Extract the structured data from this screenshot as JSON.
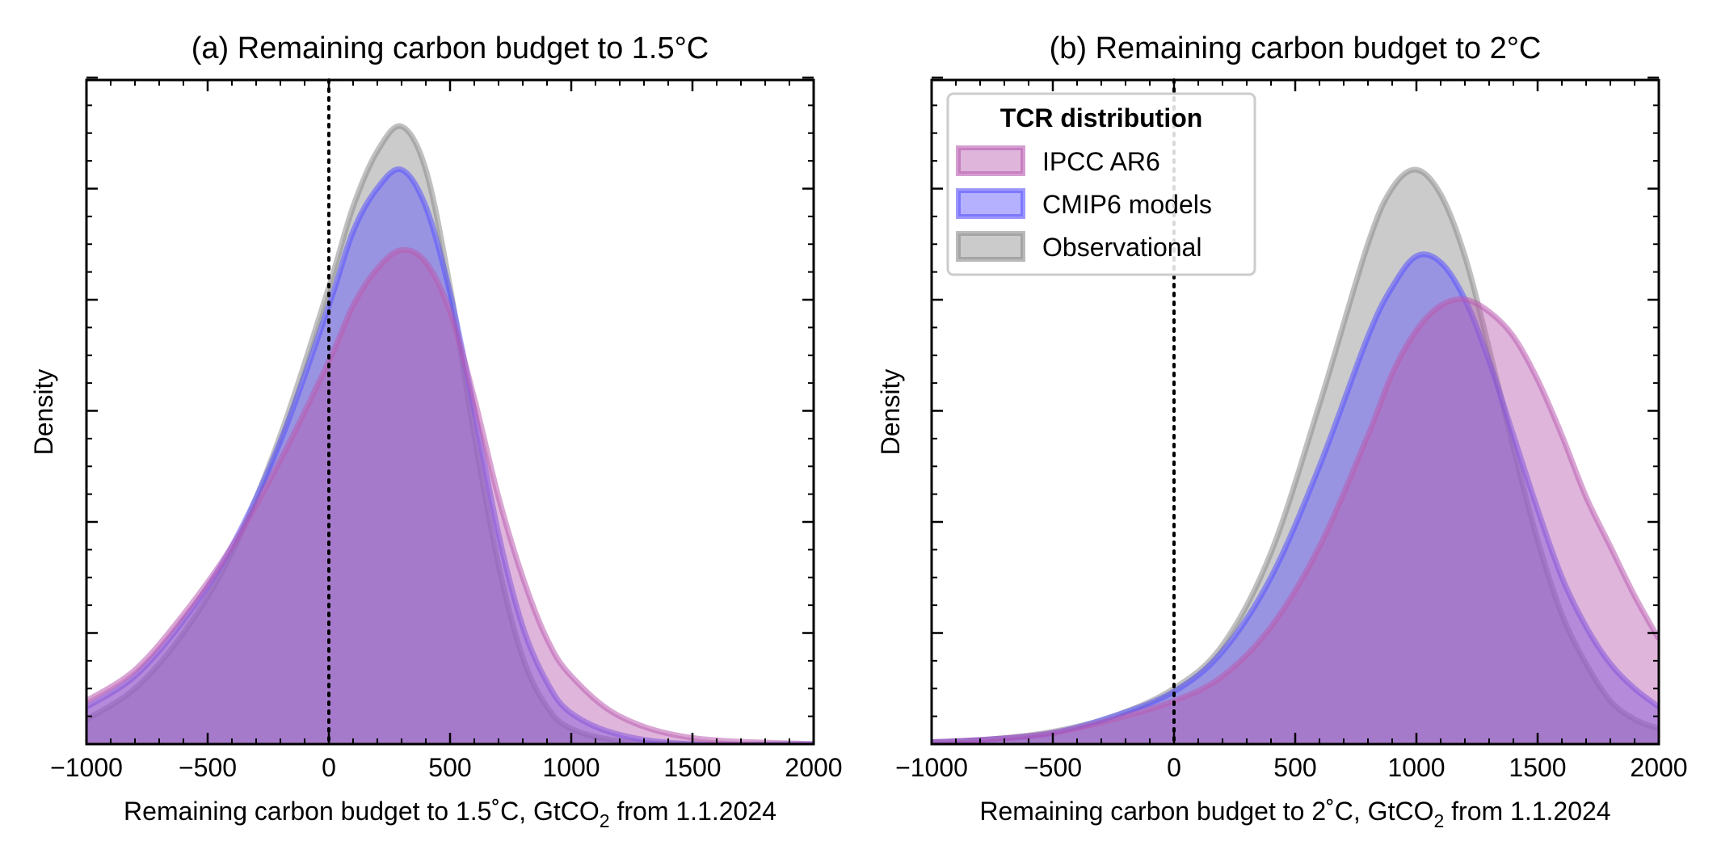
{
  "colors": {
    "IPCC AR6": "#b95bb0",
    "CMIP6 models": "#5a52ff",
    "Observational": "#8c8c8c"
  },
  "legend": {
    "title": "TCR distribution",
    "entries": [
      "IPCC AR6",
      "CMIP6 models",
      "Observational"
    ],
    "placement": "upper-left"
  },
  "chart_data": [
    {
      "type": "area",
      "title": "(a) Remaining carbon budget to 1.5°C",
      "xlabel_main": "Remaining carbon budget to 1.5˚C, GtCO",
      "xlabel_sub": "2",
      "xlabel_tail": " from 1.1.2024",
      "ylabel": "Density",
      "xlim": [
        -1000,
        2000
      ],
      "ylim": [
        0,
        1
      ],
      "xticks": [
        -1000,
        -500,
        0,
        500,
        1000,
        1500,
        2000
      ],
      "xtick_labels": [
        "−1000",
        "−500",
        "0",
        "500",
        "1000",
        "1500",
        "2000"
      ],
      "reference_line_x": 0,
      "x": [
        -1000,
        -800,
        -600,
        -400,
        -200,
        0,
        100,
        200,
        300,
        400,
        500,
        600,
        700,
        800,
        900,
        1000,
        1200,
        1500,
        2000
      ],
      "series": [
        {
          "name": "IPCC AR6",
          "values": [
            0.07,
            0.12,
            0.21,
            0.32,
            0.46,
            0.62,
            0.71,
            0.77,
            0.8,
            0.78,
            0.7,
            0.56,
            0.4,
            0.27,
            0.17,
            0.11,
            0.045,
            0.01,
            0.0
          ]
        },
        {
          "name": "CMIP6 models",
          "values": [
            0.06,
            0.11,
            0.2,
            0.32,
            0.49,
            0.71,
            0.83,
            0.9,
            0.93,
            0.87,
            0.73,
            0.54,
            0.34,
            0.19,
            0.1,
            0.05,
            0.015,
            0.0,
            0.0
          ]
        },
        {
          "name": "Observational",
          "values": [
            0.04,
            0.09,
            0.18,
            0.31,
            0.5,
            0.74,
            0.87,
            0.96,
            1.0,
            0.93,
            0.74,
            0.5,
            0.29,
            0.14,
            0.06,
            0.025,
            0.005,
            0.0,
            0.0
          ]
        }
      ]
    },
    {
      "type": "area",
      "title": "(b) Remaining carbon budget to 2°C",
      "xlabel_main": "Remaining carbon budget to 2˚C, GtCO",
      "xlabel_sub": "2",
      "xlabel_tail": " from 1.1.2024",
      "ylabel": "Density",
      "xlim": [
        -1000,
        2000
      ],
      "ylim": [
        0,
        1
      ],
      "xticks": [
        -1000,
        -500,
        0,
        500,
        1000,
        1500,
        2000
      ],
      "xtick_labels": [
        "−1000",
        "−500",
        "0",
        "500",
        "1000",
        "1500",
        "2000"
      ],
      "reference_line_x": 0,
      "x": [
        -1000,
        -750,
        -500,
        -250,
        0,
        200,
        400,
        600,
        800,
        900,
        1000,
        1100,
        1200,
        1300,
        1400,
        1500,
        1600,
        1700,
        1800,
        1900,
        2000
      ],
      "series": [
        {
          "name": "IPCC AR6",
          "values": [
            0.003,
            0.008,
            0.018,
            0.04,
            0.07,
            0.11,
            0.19,
            0.32,
            0.5,
            0.6,
            0.67,
            0.71,
            0.72,
            0.7,
            0.66,
            0.59,
            0.5,
            0.4,
            0.32,
            0.24,
            0.17
          ]
        },
        {
          "name": "CMIP6 models",
          "values": [
            0.003,
            0.008,
            0.018,
            0.045,
            0.085,
            0.15,
            0.27,
            0.45,
            0.66,
            0.74,
            0.79,
            0.78,
            0.72,
            0.62,
            0.5,
            0.38,
            0.27,
            0.19,
            0.13,
            0.09,
            0.06
          ]
        },
        {
          "name": "Observational",
          "values": [
            0.003,
            0.008,
            0.02,
            0.045,
            0.09,
            0.16,
            0.31,
            0.55,
            0.81,
            0.9,
            0.93,
            0.89,
            0.79,
            0.64,
            0.48,
            0.33,
            0.21,
            0.13,
            0.07,
            0.04,
            0.025
          ]
        }
      ]
    }
  ]
}
